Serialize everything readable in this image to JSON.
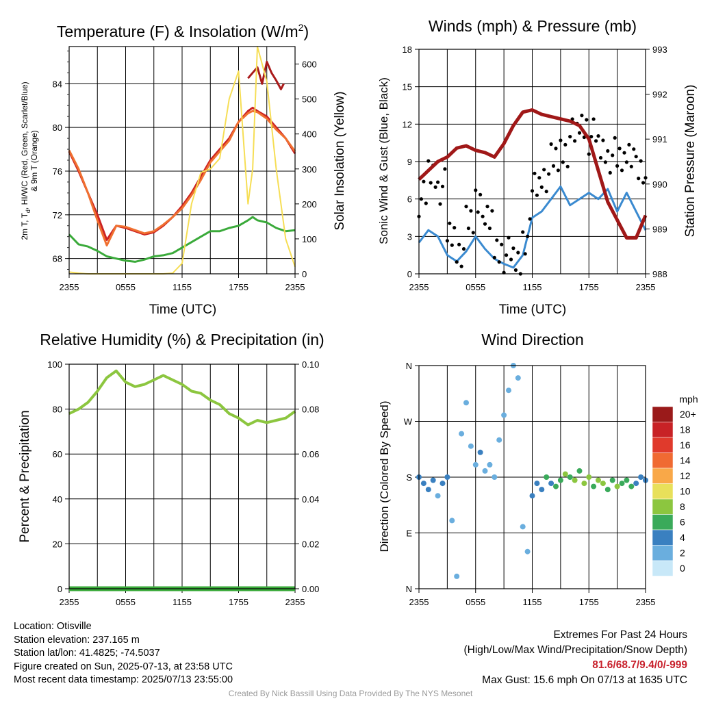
{
  "chart_data": [
    {
      "type": "line",
      "title": "Temperature (F) & Insolation (W/m²)",
      "title_text": "Temperature (F) & Insolation (W/m",
      "title_sup": "2",
      "title_close": ")",
      "ylabel_left_line1": "2m T, T",
      "ylabel_left_sub": "d",
      "ylabel_left_line1b": ", HI/WC (Red, Green, Scarlet/Blue)",
      "ylabel_left_line2": "& 9m T (Orange)",
      "ylabel_right": "Solar Insolation (Yellow)",
      "xlabel": "Time (UTC)",
      "xticks": [
        "2355",
        "0555",
        "1155",
        "1755",
        "2355"
      ],
      "yticks_left": [
        "68",
        "72",
        "76",
        "80",
        "84"
      ],
      "yticks_right": [
        "0",
        "100",
        "200",
        "300",
        "400",
        "500",
        "600"
      ],
      "ylim_left": [
        66.6,
        87.4
      ],
      "ylim_right": [
        0,
        650
      ],
      "x_hours": [
        0,
        1,
        2,
        3,
        4,
        5,
        6,
        7,
        8,
        9,
        10,
        11,
        12,
        13,
        14,
        15,
        16,
        17,
        18,
        19,
        19.5,
        20,
        21,
        22,
        23,
        24
      ],
      "series": [
        {
          "name": "2m T",
          "color": "#cc2222",
          "y": [
            77.8,
            76,
            74,
            72,
            69.7,
            71,
            70.8,
            70.5,
            70.2,
            70.4,
            71,
            71.8,
            72.8,
            74,
            75.5,
            77,
            78,
            79,
            80.5,
            81.5,
            81.8,
            81.5,
            81,
            80,
            79,
            77.6
          ]
        },
        {
          "name": "9m T",
          "color": "#f07030",
          "y": [
            77.9,
            76.2,
            74,
            71.5,
            69.2,
            71,
            70.9,
            70.6,
            70.3,
            70.5,
            71.1,
            71.8,
            72.6,
            73.8,
            75.2,
            76.8,
            77.8,
            78.8,
            80.5,
            81.3,
            81.5,
            81.4,
            80.8,
            79.8,
            79,
            77.8
          ]
        },
        {
          "name": "Td",
          "color": "#3aaa3a",
          "y": [
            70.2,
            69.3,
            69.1,
            68.7,
            68.2,
            68,
            67.8,
            67.7,
            67.9,
            68.2,
            68.3,
            68.5,
            69,
            69.5,
            70,
            70.5,
            70.5,
            70.8,
            71,
            71.5,
            71.8,
            71.5,
            71.3,
            70.8,
            70.5,
            70.6
          ]
        },
        {
          "name": "HI",
          "color": "#aa1a1a",
          "x": [
            19,
            19.5,
            20,
            20.5,
            21,
            21.5,
            22,
            22.5,
            22.8
          ],
          "y": [
            84.5,
            85,
            85.5,
            84,
            86,
            85,
            84.3,
            83.5,
            84
          ]
        },
        {
          "name": "Solar",
          "color": "#f6de55",
          "y": [
            5,
            2,
            0,
            0,
            0,
            0,
            0,
            0,
            0,
            0,
            0,
            2,
            30,
            200,
            290,
            300,
            330,
            500,
            580,
            200,
            300,
            650,
            550,
            300,
            100,
            20
          ]
        }
      ]
    },
    {
      "type": "line",
      "title": "Winds (mph) & Pressure (mb)",
      "ylabel_left": "Sonic Wind & Gust (Blue, Black)",
      "ylabel_right": "Station Pressure (Maroon)",
      "xlabel": "Time (UTC)",
      "xticks": [
        "2355",
        "0555",
        "1155",
        "1755",
        "2355"
      ],
      "yticks_left": [
        "0",
        "3",
        "6",
        "9",
        "12",
        "15",
        "18"
      ],
      "yticks_right": [
        "988",
        "989",
        "990",
        "991",
        "992",
        "993"
      ],
      "ylim_left": [
        0,
        18
      ],
      "ylim_right": [
        988,
        993
      ],
      "x_hours": [
        0,
        1,
        2,
        3,
        4,
        5,
        6,
        7,
        8,
        9,
        10,
        11,
        12,
        13,
        14,
        15,
        16,
        17,
        18,
        19,
        20,
        21,
        22,
        23,
        24
      ],
      "series": [
        {
          "name": "Wind",
          "color": "#3a8ad0",
          "y": [
            2.5,
            3.5,
            3,
            1.5,
            1,
            1.8,
            3,
            2,
            1.2,
            0.8,
            0.5,
            1.5,
            4.5,
            5,
            6,
            7,
            5.5,
            6,
            6.5,
            6,
            6.8,
            5,
            6.5,
            5,
            3.5
          ]
        },
        {
          "name": "Gust",
          "color": "#000000",
          "y": [
            6,
            8,
            7,
            3,
            2,
            4,
            6,
            4,
            2,
            1.5,
            1,
            3,
            7,
            8,
            9,
            10,
            11,
            12,
            11,
            10,
            9.5,
            9,
            10,
            8,
            7
          ]
        },
        {
          "name": "Pressure",
          "color": "#a01818",
          "y": [
            990.1,
            990.3,
            990.5,
            990.6,
            990.8,
            990.85,
            990.75,
            990.7,
            990.6,
            990.9,
            991.3,
            991.6,
            991.65,
            991.55,
            991.5,
            991.45,
            991.4,
            991.3,
            991,
            990.3,
            989.6,
            989.2,
            988.8,
            988.8,
            989.3
          ]
        }
      ]
    },
    {
      "type": "line",
      "title": "Relative Humidity (%) & Precipitation (in)",
      "ylabel_left": "Percent & Precipitation",
      "xticks": [
        "2355",
        "0555",
        "1155",
        "1755",
        "2355"
      ],
      "yticks_left": [
        "0",
        "20",
        "40",
        "60",
        "80",
        "100"
      ],
      "yticks_right": [
        "0.00",
        "0.02",
        "0.04",
        "0.06",
        "0.08",
        "0.10"
      ],
      "ylim_left": [
        0,
        100
      ],
      "ylim_right": [
        0,
        0.1
      ],
      "x_hours": [
        0,
        1,
        2,
        3,
        4,
        5,
        6,
        7,
        8,
        9,
        10,
        11,
        12,
        13,
        14,
        15,
        16,
        17,
        18,
        19,
        20,
        21,
        22,
        23,
        24
      ],
      "series": [
        {
          "name": "RH",
          "color": "#8cc63f",
          "y": [
            78,
            80,
            83,
            88,
            94,
            97,
            92,
            90,
            91,
            93,
            95,
            93,
            91,
            88,
            87,
            84,
            82,
            78,
            76,
            73,
            75,
            74,
            75,
            76,
            79
          ]
        },
        {
          "name": "Precip",
          "color": "#3aaa3a",
          "y": [
            0,
            0,
            0,
            0,
            0,
            0,
            0,
            0,
            0,
            0,
            0,
            0,
            0,
            0,
            0,
            0,
            0,
            0,
            0,
            0,
            0,
            0,
            0,
            0,
            0
          ]
        }
      ]
    },
    {
      "type": "scatter",
      "title": "Wind Direction",
      "ylabel_left": "Direction (Colored By Speed)",
      "xticks": [
        "2355",
        "0555",
        "1155",
        "1755",
        "2355"
      ],
      "yticks_left": [
        "N",
        "E",
        "S",
        "W",
        "N"
      ],
      "ylim_left": [
        0,
        360
      ],
      "legend_title": "mph",
      "legend_labels": [
        "20+",
        "18",
        "16",
        "14",
        "12",
        "10",
        "8",
        "6",
        "4",
        "2",
        "0"
      ],
      "legend_colors": [
        "#9a1a1a",
        "#c82226",
        "#e03a2c",
        "#f06a32",
        "#f9a848",
        "#e8e05a",
        "#8cc63f",
        "#3aaa5a",
        "#3a80c0",
        "#6aaede",
        "#c8e8f8"
      ],
      "points_desc": "Direction samples colored by speed",
      "x_hours": [
        0,
        0.5,
        1,
        1.5,
        2,
        2.5,
        3,
        3.5,
        4,
        4.5,
        5,
        5.5,
        6,
        6.5,
        7,
        7.5,
        8,
        8.5,
        9,
        9.5,
        10,
        10.5,
        11,
        11.5,
        12,
        12.5,
        13,
        13.5,
        14,
        14.5,
        15,
        15.5,
        16,
        16.5,
        17,
        17.5,
        18,
        18.5,
        19,
        19.5,
        20,
        20.5,
        21,
        21.5,
        22,
        22.5,
        23,
        23.5,
        24
      ],
      "y_deg": [
        180,
        170,
        160,
        175,
        150,
        170,
        180,
        110,
        20,
        250,
        300,
        230,
        200,
        220,
        190,
        200,
        180,
        240,
        280,
        320,
        360,
        340,
        100,
        60,
        150,
        170,
        160,
        180,
        170,
        165,
        175,
        185,
        180,
        175,
        190,
        170,
        180,
        165,
        175,
        170,
        160,
        175,
        165,
        170,
        175,
        165,
        170,
        180,
        175
      ],
      "speed": [
        3,
        4,
        3,
        3,
        2,
        3,
        4,
        1,
        1,
        1,
        1,
        2,
        2,
        3,
        1,
        2,
        2,
        1,
        1,
        1,
        1,
        1,
        1,
        1,
        4,
        4,
        4,
        5,
        4,
        5,
        6,
        7,
        5,
        7,
        6,
        8,
        7,
        6,
        8,
        7,
        6,
        6,
        7,
        6,
        5,
        5,
        4,
        4,
        4
      ]
    }
  ],
  "info": {
    "location": "Location: Otisville",
    "elevation": "Station elevation: 237.165 m",
    "latlon": "Station lat/lon: 41.4825; -74.5037",
    "created": "Figure created on Sun, 2025-07-13, at 23:58 UTC",
    "recent": "Most recent data timestamp: 2025/07/13 23:55:00"
  },
  "extremes": {
    "title": "Extremes For Past 24 Hours",
    "subtitle": "(High/Low/Max Wind/Precipitation/Snow Depth)",
    "values": "81.6/68.7/9.4/0/-999",
    "gust": "Max Gust: 15.6 mph On 07/13 at 1635 UTC"
  },
  "credit": "Created By Nick Bassill Using Data Provided By The NYS Mesonet"
}
